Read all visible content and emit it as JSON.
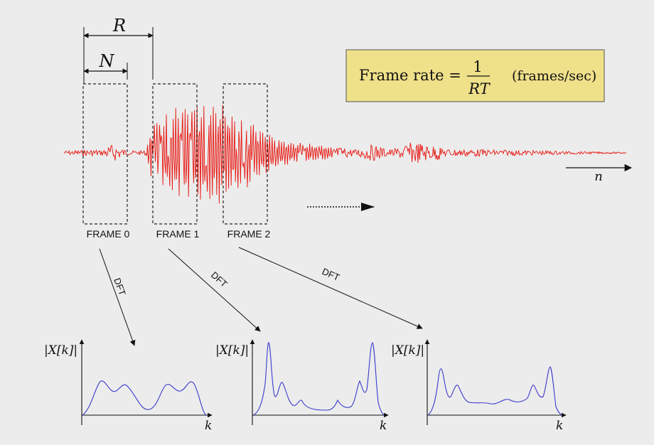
{
  "labels": {
    "R": "R",
    "N": "N",
    "n": "n",
    "frames": [
      "FRAME 0",
      "FRAME 1",
      "FRAME 2"
    ],
    "dft": [
      "DFT",
      "DFT",
      "DFT"
    ],
    "axis_y": "|X[k]|",
    "axis_x": "k"
  },
  "formula": {
    "lhs": "Frame rate =",
    "numerator": "1",
    "denominator": "RT",
    "units": "(frames/sec)"
  },
  "colors": {
    "background": "#ececec",
    "waveform": "#e8150f",
    "spectrum": "#3a3acc",
    "formula_box": "#efe08a",
    "ink": "#111111"
  }
}
